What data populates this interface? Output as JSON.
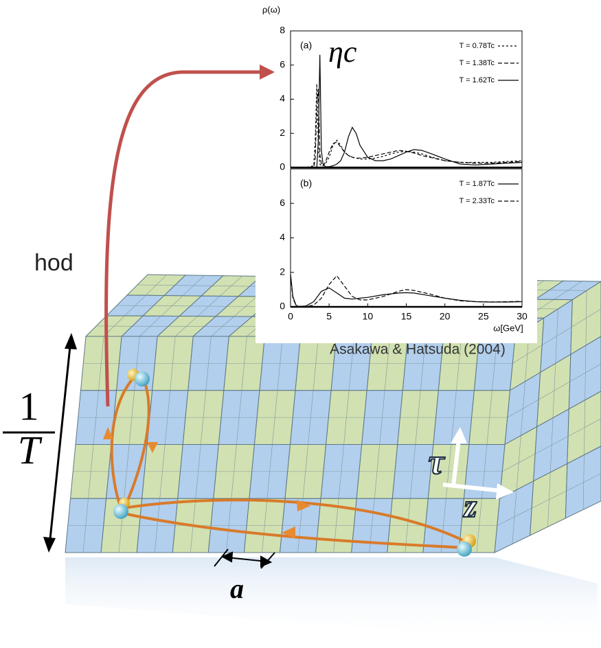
{
  "chart_data": [
    {
      "type": "line",
      "ylabel": "ρ(ω)",
      "panel_label": "(a)",
      "annotation": "ηc",
      "xlim": [
        0,
        30
      ],
      "ylim": [
        0,
        8
      ],
      "yticks": [
        0,
        2,
        4,
        6,
        8
      ],
      "legend": "upper right",
      "x": [
        0,
        0.5,
        1,
        2,
        3,
        3.2,
        3.4,
        3.6,
        3.8,
        4,
        4.2,
        4.5,
        5,
        5.5,
        6,
        6.5,
        7,
        7.5,
        8,
        8.5,
        9,
        10,
        11,
        12,
        13,
        14,
        15,
        16,
        17,
        18,
        20,
        22,
        24,
        26,
        28,
        30
      ],
      "series": [
        {
          "name": "T = 0.78Tc",
          "color": "#000000",
          "dash": "short",
          "values": [
            0,
            0,
            0,
            0,
            0.1,
            1.5,
            4.9,
            1.2,
            0.2,
            0.1,
            0.1,
            0.2,
            0.6,
            1.3,
            1.6,
            1.3,
            0.9,
            0.7,
            0.6,
            0.55,
            0.5,
            0.5,
            0.55,
            0.65,
            0.8,
            0.9,
            0.95,
            0.9,
            0.8,
            0.65,
            0.4,
            0.3,
            0.3,
            0.3,
            0.35,
            0.4
          ]
        },
        {
          "name": "T = 1.38Tc",
          "color": "#000000",
          "dash": "long",
          "values": [
            0,
            0,
            0,
            0,
            0,
            0.5,
            3.5,
            4.6,
            0.8,
            0.2,
            0.1,
            0.3,
            0.9,
            1.4,
            1.5,
            1.2,
            0.9,
            0.7,
            0.6,
            0.55,
            0.55,
            0.6,
            0.7,
            0.8,
            0.9,
            1.0,
            0.95,
            0.85,
            0.7,
            0.6,
            0.4,
            0.3,
            0.25,
            0.25,
            0.3,
            0.35
          ]
        },
        {
          "name": "T = 1.62Tc",
          "color": "#000000",
          "dash": "solid",
          "values": [
            0,
            0,
            0,
            0,
            0,
            0,
            0,
            1.5,
            6.6,
            1.0,
            0.2,
            0.05,
            0.05,
            0.1,
            0.2,
            0.4,
            0.9,
            1.8,
            2.35,
            2.0,
            1.3,
            0.6,
            0.4,
            0.4,
            0.5,
            0.7,
            0.9,
            1.05,
            1.0,
            0.85,
            0.5,
            0.2,
            0.15,
            0.2,
            0.25,
            0.3
          ]
        }
      ]
    },
    {
      "type": "line",
      "panel_label": "(b)",
      "xlabel": "ω[GeV]",
      "xlim": [
        0,
        30
      ],
      "xticks": [
        0,
        5,
        10,
        15,
        20,
        25,
        30
      ],
      "ylim": [
        0,
        8
      ],
      "yticks": [
        0,
        2,
        4,
        6
      ],
      "legend": "upper right",
      "x": [
        0,
        0.3,
        0.7,
        1,
        2,
        3,
        4,
        5,
        6,
        7,
        8,
        9,
        10,
        12,
        14,
        15,
        16,
        18,
        20,
        22,
        24,
        26,
        28,
        30
      ],
      "series": [
        {
          "name": "T = 1.87Tc",
          "color": "#000000",
          "dash": "solid",
          "values": [
            1.9,
            0.6,
            0.1,
            0.02,
            0.05,
            0.3,
            0.9,
            1.1,
            0.8,
            0.5,
            0.45,
            0.5,
            0.55,
            0.7,
            0.8,
            0.82,
            0.8,
            0.65,
            0.5,
            0.38,
            0.3,
            0.28,
            0.28,
            0.3
          ]
        },
        {
          "name": "T = 2.33Tc",
          "color": "#000000",
          "dash": "long",
          "values": [
            1.8,
            0.5,
            0.1,
            0.02,
            0.02,
            0.1,
            0.5,
            1.3,
            1.8,
            1.2,
            0.6,
            0.4,
            0.4,
            0.6,
            0.9,
            1.0,
            0.95,
            0.75,
            0.5,
            0.35,
            0.3,
            0.28,
            0.3,
            0.32
          ]
        }
      ]
    }
  ],
  "illustration": {
    "partial_text": "hod",
    "numerator": "1",
    "denominator": "T",
    "tau": "τ",
    "z": "z",
    "spacing": "a",
    "citation": "Asakawa & Hatsuda (2004)"
  }
}
